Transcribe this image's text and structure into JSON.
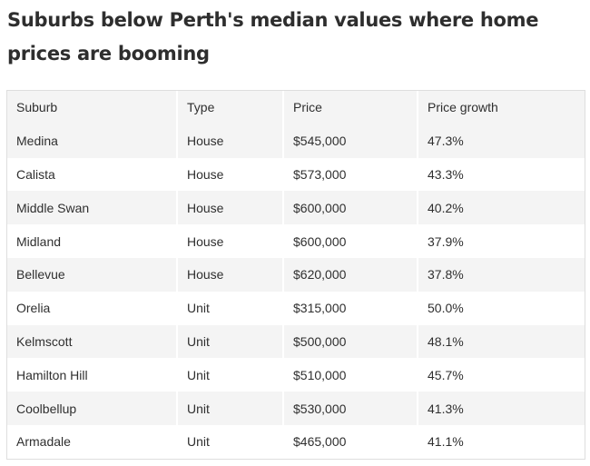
{
  "title": "Suburbs below Perth's median values where home prices are booming",
  "table": {
    "headers": [
      "Suburb",
      "Type",
      "Price",
      "Price growth"
    ],
    "rows": [
      [
        "Medina",
        "House",
        "$545,000",
        "47.3%"
      ],
      [
        "Calista",
        "House",
        "$573,000",
        "43.3%"
      ],
      [
        "Middle Swan",
        "House",
        "$600,000",
        "40.2%"
      ],
      [
        "Midland",
        "House",
        "$600,000",
        "37.9%"
      ],
      [
        "Bellevue",
        "House",
        "$620,000",
        "37.8%"
      ],
      [
        "Orelia",
        "Unit",
        "$315,000",
        "50.0%"
      ],
      [
        "Kelmscott",
        "Unit",
        "$500,000",
        "48.1%"
      ],
      [
        "Hamilton Hill",
        "Unit",
        "$510,000",
        "45.7%"
      ],
      [
        "Coolbellup",
        "Unit",
        "$530,000",
        "41.3%"
      ],
      [
        "Armadale",
        "Unit",
        "$465,000",
        "41.1%"
      ]
    ]
  }
}
